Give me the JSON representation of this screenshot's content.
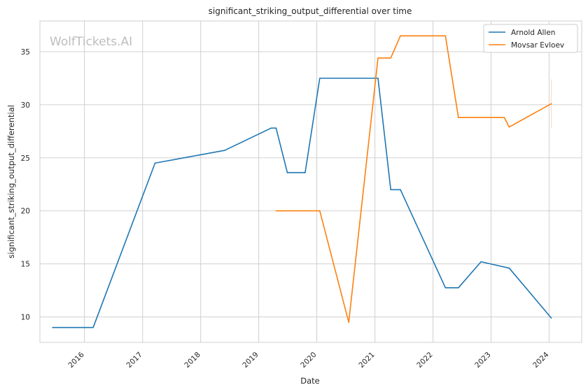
{
  "chart_data": {
    "type": "line",
    "title": "significant_striking_output_differential over time",
    "xlabel": "Date",
    "ylabel": "significant_striking_output_differential",
    "watermark": "WolfTickets.AI",
    "x_ticks": [
      "2016",
      "2017",
      "2018",
      "2019",
      "2020",
      "2021",
      "2022",
      "2023",
      "2024"
    ],
    "y_ticks": [
      10,
      15,
      20,
      25,
      30,
      35
    ],
    "xlim": [
      "2015-03-27",
      "2024-07-24"
    ],
    "ylim": [
      7.6,
      37.9
    ],
    "grid": true,
    "legend_position": "top-right",
    "series": [
      {
        "name": "Arnold Allen",
        "color": "#1f77b4",
        "points": [
          [
            "2015-06-15",
            9.0
          ],
          [
            "2016-02-25",
            9.0
          ],
          [
            "2017-03-20",
            24.5
          ],
          [
            "2018-06-01",
            25.7
          ],
          [
            "2019-03-20",
            27.8
          ],
          [
            "2019-04-20",
            27.8
          ],
          [
            "2019-06-30",
            23.6
          ],
          [
            "2019-10-20",
            23.6
          ],
          [
            "2020-01-20",
            32.5
          ],
          [
            "2021-01-20",
            32.5
          ],
          [
            "2021-04-10",
            22.0
          ],
          [
            "2021-06-10",
            22.0
          ],
          [
            "2022-03-20",
            12.75
          ],
          [
            "2022-06-10",
            12.75
          ],
          [
            "2022-10-30",
            15.2
          ],
          [
            "2023-04-25",
            14.6
          ],
          [
            "2024-01-15",
            9.9
          ]
        ]
      },
      {
        "name": "Movsar Evloev",
        "color": "#ff7f0e",
        "points": [
          [
            "2019-04-20",
            20.0
          ],
          [
            "2020-01-20",
            20.0
          ],
          [
            "2020-07-20",
            9.5
          ],
          [
            "2021-01-20",
            34.4
          ],
          [
            "2021-04-10",
            34.4
          ],
          [
            "2021-06-10",
            36.5
          ],
          [
            "2022-03-20",
            36.5
          ],
          [
            "2022-06-10",
            28.8
          ],
          [
            "2023-03-25",
            28.8
          ],
          [
            "2023-04-25",
            27.9
          ],
          [
            "2024-01-15",
            30.1
          ]
        ]
      }
    ]
  }
}
